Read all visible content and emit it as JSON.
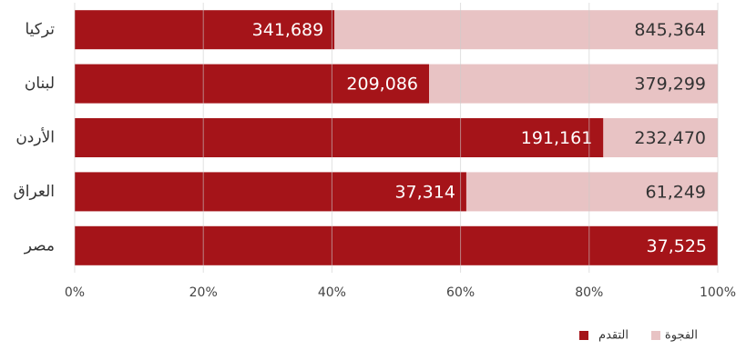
{
  "chart_data": {
    "type": "stacked_bar_horizontal",
    "categories": [
      "تركيا",
      "لبنان",
      "الأردن",
      "العراق",
      "مصر"
    ],
    "series": [
      {
        "name": "التقدم",
        "color": "#a51419",
        "values": [
          40.4,
          55.1,
          82.2,
          60.9,
          100
        ],
        "value_labels": [
          "341,689",
          "209,086",
          "191,161",
          "37,314",
          "37,525"
        ]
      },
      {
        "name": "الفجوة",
        "color": "#e8c3c4",
        "values": [
          59.6,
          44.9,
          17.8,
          39.1,
          0
        ],
        "value_labels": [
          "845,364",
          "379,299",
          "232,470",
          "61,249",
          null
        ]
      }
    ],
    "xlim": [
      0,
      100
    ],
    "xticks": [
      {
        "value": 0,
        "label": "0%"
      },
      {
        "value": 20,
        "label": "20%"
      },
      {
        "value": 40,
        "label": "40%"
      },
      {
        "value": 60,
        "label": "60%"
      },
      {
        "value": 80,
        "label": "80%"
      },
      {
        "value": 100,
        "label": "100%"
      }
    ],
    "grid": true
  }
}
